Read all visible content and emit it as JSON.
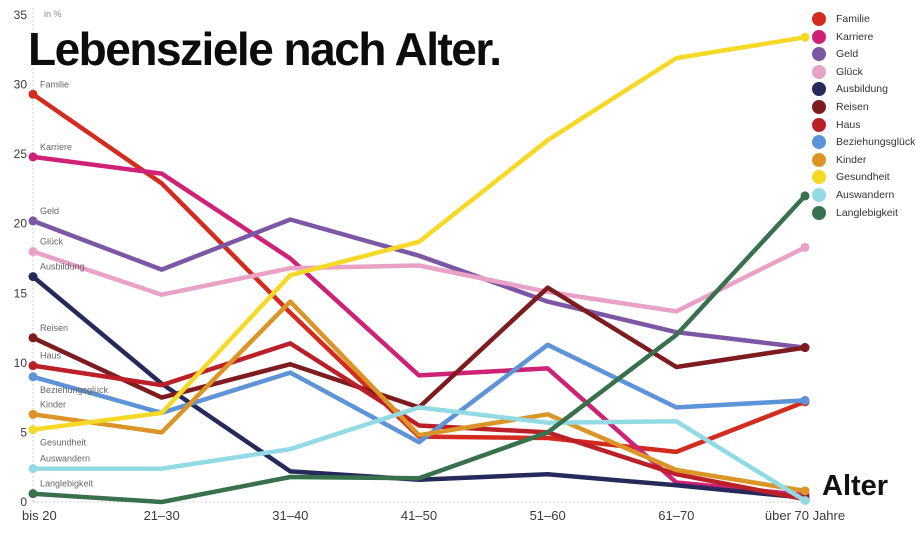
{
  "title": "Lebensziele nach Alter.",
  "y_axis": {
    "unit_label": "in %",
    "ticks": [
      0,
      5,
      10,
      15,
      20,
      25,
      30,
      35
    ],
    "max": 35
  },
  "x_axis": {
    "label": "Alter",
    "categories": [
      "bis 20",
      "21–30",
      "31–40",
      "41–50",
      "51–60",
      "61–70",
      "über 70 Jahre"
    ]
  },
  "chart_data": {
    "type": "line",
    "title": "Lebensziele nach Alter.",
    "xlabel": "Alter",
    "ylabel": "in %",
    "ylim": [
      0,
      35
    ],
    "grid": false,
    "legend_position": "top-right",
    "categories": [
      "bis 20",
      "21–30",
      "31–40",
      "41–50",
      "51–60",
      "61–70",
      "über 70 Jahre"
    ],
    "series": [
      {
        "name": "Familie",
        "color": "#d32b1e",
        "values": [
          29.3,
          22.9,
          13.6,
          4.7,
          4.6,
          3.6,
          7.2
        ]
      },
      {
        "name": "Karriere",
        "color": "#ce2277",
        "values": [
          24.8,
          23.6,
          17.5,
          9.1,
          9.6,
          1.4,
          0.5
        ]
      },
      {
        "name": "Geld",
        "color": "#7b57a5",
        "values": [
          20.2,
          16.7,
          20.3,
          17.7,
          14.4,
          12.2,
          11.1
        ]
      },
      {
        "name": "Glück",
        "color": "#e9a2c6",
        "values": [
          18.0,
          14.9,
          16.8,
          17.0,
          15.1,
          13.7,
          18.3
        ]
      },
      {
        "name": "Ausbildung",
        "color": "#262a5b",
        "values": [
          16.2,
          8.5,
          2.2,
          1.6,
          2.0,
          1.2,
          0.3
        ]
      },
      {
        "name": "Reisen",
        "color": "#7d1b1f",
        "values": [
          11.8,
          7.5,
          9.9,
          6.8,
          15.4,
          9.7,
          11.1
        ]
      },
      {
        "name": "Haus",
        "color": "#bb2028",
        "values": [
          9.8,
          8.4,
          11.4,
          5.5,
          5.0,
          2.0,
          0.2
        ]
      },
      {
        "name": "Beziehungsglück",
        "color": "#5d93d7",
        "values": [
          9.0,
          6.4,
          9.3,
          4.3,
          11.3,
          6.8,
          7.3
        ]
      },
      {
        "name": "Kinder",
        "color": "#db9526",
        "values": [
          6.3,
          5.0,
          14.4,
          4.8,
          6.3,
          2.3,
          0.8
        ]
      },
      {
        "name": "Gesundheit",
        "color": "#f6d927",
        "values": [
          5.2,
          6.4,
          16.3,
          18.7,
          26.0,
          31.9,
          33.4
        ]
      },
      {
        "name": "Auswandern",
        "color": "#92dbe5",
        "values": [
          2.4,
          2.4,
          3.8,
          6.8,
          5.7,
          5.8,
          0.1
        ]
      },
      {
        "name": "Langlebigkeit",
        "color": "#38714b",
        "values": [
          0.6,
          0.0,
          1.8,
          1.7,
          5.0,
          12.0,
          22.0
        ]
      }
    ],
    "start_labels_below": [
      "Beziehungsglück",
      "Gesundheit"
    ]
  }
}
